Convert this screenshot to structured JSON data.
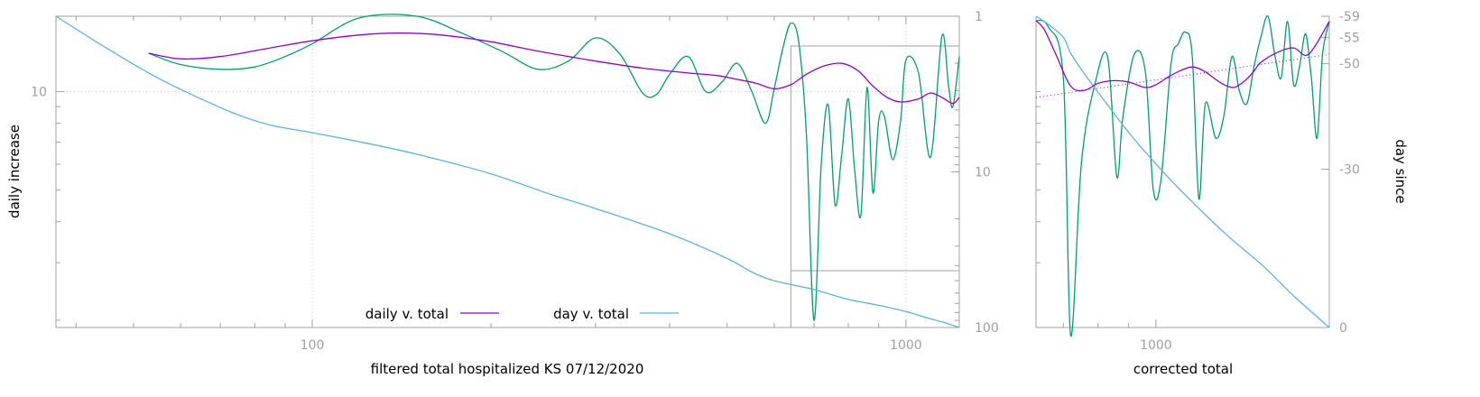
{
  "chart_data": [
    {
      "type": "line",
      "title": "",
      "xlabel": "filtered total hospitalized KS 07/12/2020",
      "ylabel": "daily increase",
      "y2label": "",
      "x_scale": "log",
      "y_scale": "log",
      "y2_scale": "log",
      "xlim": [
        37,
        1230
      ],
      "ylim": [
        1.9,
        17
      ],
      "y2lim": [
        1,
        100
      ],
      "grid": true,
      "x_ticks": [
        "100",
        "1000"
      ],
      "y_ticks": [
        "10"
      ],
      "y2_ticks": [
        "1",
        "10",
        "100"
      ],
      "legend": {
        "placement": "bottom-center",
        "entries": [
          "daily v. total",
          "day v. total"
        ]
      },
      "colors": {
        "smoothed": "#9400d3",
        "day": "#56b4e9",
        "raw": "#009e73"
      },
      "series": [
        {
          "name": "daily v. total",
          "color": "#9400d3",
          "axis": "y",
          "x": [
            53,
            60,
            70,
            85,
            100,
            120,
            140,
            165,
            200,
            240,
            300,
            360,
            430,
            480,
            520,
            560,
            600,
            640,
            680,
            730,
            780,
            830,
            880,
            930,
            980,
            1050,
            1100,
            1150,
            1200,
            1230
          ],
          "y": [
            13.1,
            12.6,
            12.8,
            13.6,
            14.3,
            14.9,
            15.1,
            14.9,
            14.2,
            13.3,
            12.4,
            11.8,
            11.4,
            11.2,
            10.9,
            10.6,
            10.2,
            10.5,
            11.3,
            12.0,
            12.2,
            11.6,
            10.4,
            9.6,
            9.3,
            9.5,
            9.9,
            9.6,
            9.2,
            9.6
          ]
        },
        {
          "name": "day v. total",
          "color": "#56b4e9",
          "axis": "y2",
          "x": [
            37,
            45,
            55,
            65,
            75,
            85,
            100,
            120,
            150,
            200,
            250,
            300,
            400,
            500,
            550,
            600,
            700,
            800,
            900,
            1000,
            1100,
            1150,
            1230
          ],
          "y2": [
            1,
            1.6,
            2.5,
            3.4,
            4.3,
            5.0,
            5.6,
            6.4,
            7.7,
            10.3,
            13.8,
            17.2,
            25,
            36,
            44,
            50,
            57,
            66,
            72,
            79,
            88,
            92,
            100
          ]
        },
        {
          "name": "",
          "color": "#009e73",
          "axis": "y",
          "x": [
            53,
            60,
            70,
            80,
            90,
            100,
            120,
            150,
            180,
            210,
            240,
            270,
            300,
            330,
            360,
            380,
            400,
            430,
            460,
            490,
            520,
            550,
            580,
            600,
            620,
            640,
            660,
            680,
            700,
            720,
            740,
            760,
            780,
            800,
            820,
            840,
            860,
            880,
            900,
            920,
            950,
            980,
            1000,
            1050,
            1100,
            1150,
            1180,
            1200,
            1230
          ],
          "y": [
            13.1,
            12.1,
            11.7,
            11.9,
            12.8,
            14.0,
            16.8,
            17.0,
            15.0,
            13.2,
            11.7,
            12.4,
            14.6,
            13.0,
            9.9,
            9.8,
            11.3,
            12.8,
            10.0,
            10.7,
            12.2,
            10.0,
            8.0,
            10.2,
            13.5,
            16.2,
            14.1,
            7.3,
            2.0,
            6.0,
            9.1,
            4.5,
            6.5,
            9.5,
            5.7,
            4.2,
            10.3,
            4.9,
            8.2,
            8.4,
            6.2,
            8.2,
            12.5,
            11.4,
            6.3,
            14.8,
            10.4,
            9.0,
            12.8
          ]
        }
      ]
    },
    {
      "type": "line",
      "title": "",
      "xlabel": "corrected total",
      "ylabel": "",
      "y2label": "day since",
      "x_scale": "log",
      "xlim": [
        630,
        1950
      ],
      "y2lim": [
        -59,
        0
      ],
      "grid": false,
      "x_ticks": [
        "1000"
      ],
      "y2_ticks": [
        "-59",
        "-55",
        "-50",
        "-30",
        "0"
      ],
      "legend": null,
      "series": [
        {
          "name": "",
          "color": "#9400d3",
          "axis": "y",
          "x": [
            630,
            650,
            680,
            720,
            760,
            800,
            850,
            900,
            960,
            1000,
            1050,
            1100,
            1150,
            1200,
            1250,
            1300,
            1350,
            1400,
            1450,
            1500,
            1600,
            1700,
            1800,
            1950
          ],
          "y": [
            16.5,
            15.5,
            13.0,
            10.4,
            10.1,
            10.6,
            10.8,
            10.7,
            10.3,
            10.5,
            11.1,
            11.6,
            11.9,
            11.6,
            11.0,
            10.5,
            10.3,
            10.7,
            11.4,
            12.3,
            13.2,
            13.6,
            13.0,
            16.4
          ]
        },
        {
          "name": "",
          "color": "#56b4e9",
          "axis": "y2",
          "x": [
            630,
            660,
            700,
            720,
            760,
            820,
            900,
            1000,
            1100,
            1300,
            1500,
            1700,
            1950
          ],
          "y2": [
            -59,
            -57.5,
            -55,
            -52,
            -48,
            -43,
            -37,
            -31,
            -26,
            -18,
            -12,
            -6,
            0
          ]
        },
        {
          "name": "",
          "color": "#009e73",
          "axis": "y",
          "x": [
            630,
            660,
            700,
            720,
            750,
            790,
            830,
            860,
            880,
            920,
            960,
            990,
            1020,
            1060,
            1090,
            1120,
            1150,
            1180,
            1210,
            1260,
            1300,
            1340,
            1380,
            1420,
            1460,
            1500,
            1540,
            1580,
            1620,
            1660,
            1700,
            1740,
            1780,
            1820,
            1860,
            1900,
            1950
          ],
          "y": [
            16.5,
            15.8,
            11.0,
            1.8,
            6.0,
            10.5,
            12.8,
            5.5,
            8.3,
            13.0,
            11.5,
            5.0,
            5.4,
            12.2,
            14.0,
            15.2,
            12.9,
            4.7,
            9.2,
            7.2,
            8.5,
            12.8,
            10.0,
            9.2,
            12.0,
            14.8,
            17.0,
            13.0,
            11.0,
            16.4,
            10.5,
            12.0,
            15.0,
            11.0,
            7.2,
            13.0,
            16.4
          ]
        },
        {
          "name": "",
          "color": "#9400d3",
          "axis": "y",
          "dashed": true,
          "x": [
            630,
            1950
          ],
          "y": [
            9.6,
            13.0
          ]
        }
      ]
    }
  ]
}
